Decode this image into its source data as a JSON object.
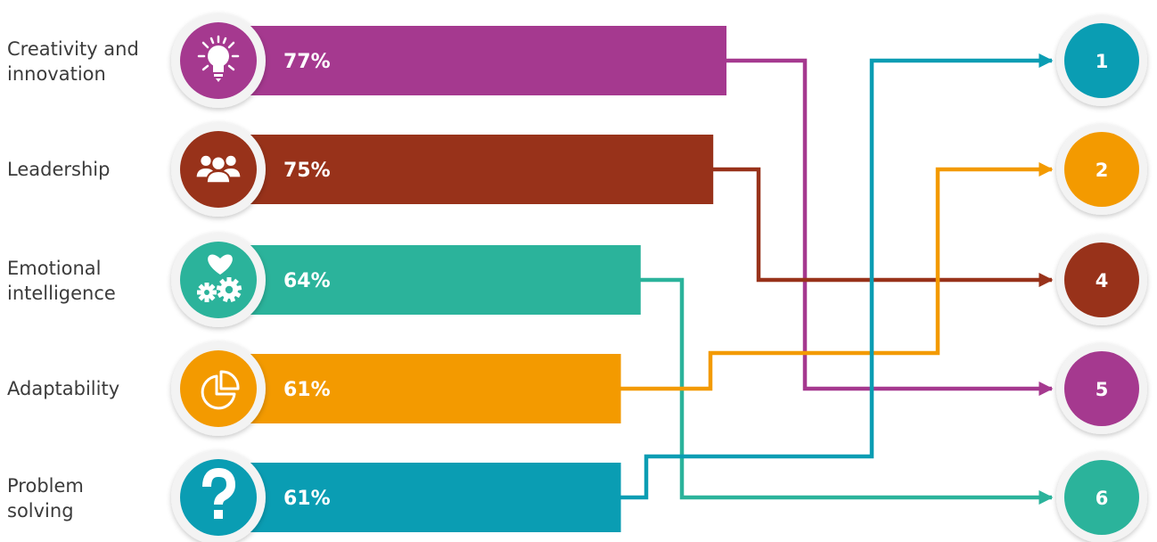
{
  "chart_data": {
    "type": "bar",
    "categories": [
      "Creativity and innovation",
      "Leadership",
      "Emotional intelligence",
      "Adaptability",
      "Problem solving"
    ],
    "category_lines": [
      [
        "Creativity and",
        "innovation"
      ],
      [
        "Leadership"
      ],
      [
        "Emotional",
        "intelligence"
      ],
      [
        "Adaptability"
      ],
      [
        "Problem",
        "solving"
      ]
    ],
    "values": [
      77,
      75,
      64,
      61,
      61
    ],
    "value_labels": [
      "77%",
      "75%",
      "64%",
      "61%",
      "61%"
    ],
    "ranks": [
      "5",
      "4",
      "6",
      "2",
      "1"
    ],
    "icons": [
      "lightbulb-icon",
      "team-icon",
      "heart-gears-icon",
      "pie-chart-icon",
      "question-mark-icon"
    ],
    "colors": [
      "#a5398f",
      "#98321a",
      "#2bb39b",
      "#f39a00",
      "#0a9db3"
    ]
  }
}
